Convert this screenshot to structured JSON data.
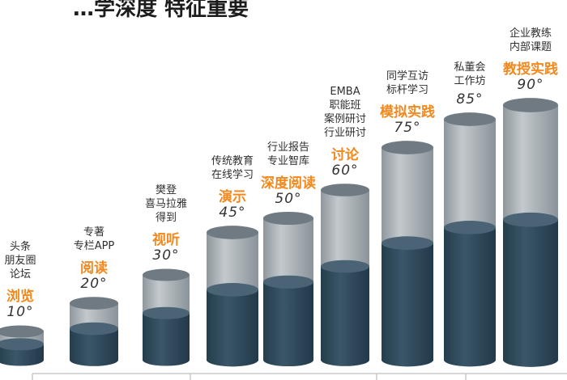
{
  "title_fragment": "…学深度 特征重要",
  "chart_data": {
    "type": "bar",
    "style": "3d-cylinder",
    "categories": [
      "浏览",
      "阅读",
      "视听",
      "演示",
      "深度阅读",
      "讨论",
      "模拟实践",
      "",
      "教授实践"
    ],
    "value_labels": [
      "10°",
      "20°",
      "30°",
      "45°",
      "50°",
      "60°",
      "75°",
      "85°",
      "90°"
    ],
    "values": [
      10,
      20,
      30,
      45,
      50,
      60,
      75,
      85,
      90
    ],
    "annotations": [
      [
        "头条",
        "朋友圈",
        "论坛"
      ],
      [
        "专著",
        "专栏APP"
      ],
      [
        "樊登",
        "喜马拉雅",
        "得到"
      ],
      [
        "传统教育",
        "在线学习"
      ],
      [
        "行业报告",
        "专业智库"
      ],
      [
        "EMBA",
        "职能班",
        "案例研讨",
        "行业研讨"
      ],
      [
        "同学互访",
        "标杆学习"
      ],
      [
        "私董会",
        "工作坊"
      ],
      [
        "企业教练",
        "内部课题"
      ]
    ],
    "colors": {
      "outer": "#a6aeb4",
      "inner": "#2f4a5a",
      "label": "#f2891f"
    }
  }
}
